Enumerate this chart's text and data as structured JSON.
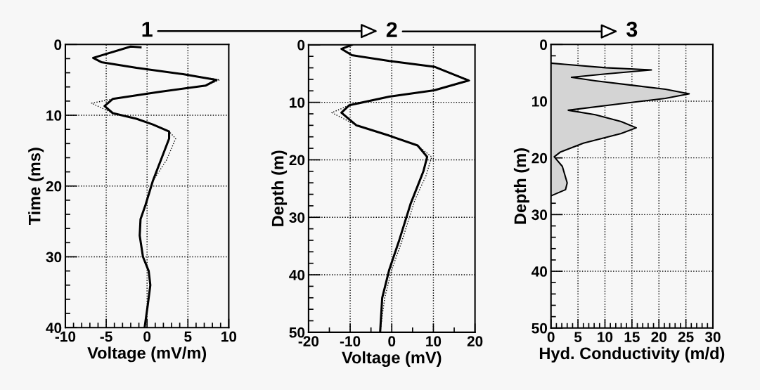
{
  "chart_data": [
    {
      "type": "line",
      "title": "1",
      "xlabel": "Voltage (mV/m)",
      "ylabel": "Time (ms)",
      "xlim": [
        -10,
        10
      ],
      "ylim": [
        40,
        0
      ],
      "grid": true,
      "xticks": [
        -10,
        {
          "value": -9,
          "label": null
        },
        {
          "value": -8,
          "label": null
        },
        {
          "value": -7,
          "label": null
        },
        {
          "value": -6,
          "label": null
        },
        -5,
        {
          "value": -4,
          "label": null
        },
        {
          "value": -3,
          "label": null
        },
        {
          "value": -2,
          "label": null
        },
        {
          "value": -1,
          "label": null
        },
        0,
        {
          "value": 1,
          "label": null
        },
        {
          "value": 2,
          "label": null
        },
        {
          "value": 3,
          "label": null
        },
        {
          "value": 4,
          "label": null
        },
        5,
        {
          "value": 6,
          "label": null
        },
        {
          "value": 7,
          "label": null
        },
        {
          "value": 8,
          "label": null
        },
        {
          "value": 9,
          "label": null
        },
        10
      ],
      "yticks": [
        0,
        {
          "value": 2,
          "label": null
        },
        {
          "value": 4,
          "label": null
        },
        {
          "value": 6,
          "label": null
        },
        {
          "value": 8,
          "label": null
        },
        10,
        {
          "value": 12,
          "label": null
        },
        {
          "value": 14,
          "label": null
        },
        {
          "value": 16,
          "label": null
        },
        {
          "value": 18,
          "label": null
        },
        20,
        {
          "value": 22,
          "label": null
        },
        {
          "value": 24,
          "label": null
        },
        {
          "value": 26,
          "label": null
        },
        {
          "value": 28,
          "label": null
        },
        30,
        {
          "value": 32,
          "label": null
        },
        {
          "value": 34,
          "label": null
        },
        {
          "value": 36,
          "label": null
        },
        {
          "value": 38,
          "label": null
        },
        40
      ],
      "series": [
        {
          "color": "#000000",
          "line_style": "dotted",
          "x": [
            -0.8,
            -2,
            -6.6,
            -5.6,
            -1.3,
            4.4,
            8.9,
            7.2,
            1.5,
            -4.2,
            -6.8,
            -4.2,
            -1.3,
            0.7,
            2.7,
            3.5,
            2.4,
            0.7,
            -0.2,
            -0.8,
            -0.9,
            -0.5,
            0.2,
            0.4,
            0.1,
            -0.3
          ],
          "values": [
            0.4,
            0.3,
            1.9,
            2.5,
            3.3,
            4.2,
            5.0,
            5.8,
            6.7,
            7.7,
            8.3,
            9.7,
            10.5,
            11.3,
            12.3,
            13.3,
            16.3,
            19.3,
            22.7,
            24.7,
            27,
            30,
            32,
            34,
            36.7,
            40
          ]
        },
        {
          "color": "#000000",
          "line_style": "solid",
          "x": [
            -0.8,
            -2,
            -6.6,
            -5.6,
            -1.3,
            4.4,
            8.5,
            7.2,
            1.5,
            -4.2,
            -5.2,
            -4.2,
            -1.3,
            0.7,
            2.7,
            2.7,
            1.8,
            0.7,
            -0.2,
            -0.8,
            -0.9,
            -0.5,
            0.2,
            0.4,
            0.1,
            -0.3
          ],
          "values": [
            0.4,
            0.3,
            1.9,
            2.5,
            3.3,
            4.2,
            5.0,
            5.8,
            6.7,
            7.7,
            8.7,
            9.7,
            10.5,
            11.3,
            12.3,
            13.3,
            16,
            19.3,
            22.7,
            24.7,
            27,
            30,
            32,
            34,
            36.7,
            40
          ]
        }
      ]
    },
    {
      "type": "line",
      "title": "2",
      "xlabel": "Voltage (mV)",
      "ylabel": "Depth (m)",
      "xlim": [
        -20,
        20
      ],
      "ylim": [
        50,
        0
      ],
      "grid": true,
      "xticks": [
        -20,
        {
          "value": -15,
          "label": null
        },
        -10,
        {
          "value": -5,
          "label": null
        },
        0,
        {
          "value": 5,
          "label": null
        },
        10,
        {
          "value": 15,
          "label": null
        },
        20
      ],
      "yticks": [
        0,
        {
          "value": 2,
          "label": null
        },
        {
          "value": 4,
          "label": null
        },
        {
          "value": 6,
          "label": null
        },
        {
          "value": 8,
          "label": null
        },
        10,
        {
          "value": 12,
          "label": null
        },
        {
          "value": 14,
          "label": null
        },
        {
          "value": 16,
          "label": null
        },
        {
          "value": 18,
          "label": null
        },
        20,
        {
          "value": 22,
          "label": null
        },
        {
          "value": 24,
          "label": null
        },
        {
          "value": 26,
          "label": null
        },
        {
          "value": 28,
          "label": null
        },
        30,
        {
          "value": 32,
          "label": null
        },
        {
          "value": 34,
          "label": null
        },
        {
          "value": 36,
          "label": null
        },
        {
          "value": 38,
          "label": null
        },
        40,
        {
          "value": 42,
          "label": null
        },
        {
          "value": 44,
          "label": null
        },
        {
          "value": 46,
          "label": null
        },
        {
          "value": 48,
          "label": null
        },
        50
      ],
      "series": [
        {
          "color": "#000000",
          "line_style": "dotted",
          "x": [
            -9.6,
            -12.1,
            -9.6,
            -0.6,
            10.2,
            18.8,
            10.2,
            -0.6,
            -10.2,
            -14.4,
            -8.5,
            -0.6,
            6.2,
            9.6,
            8.2,
            5.6,
            2.4,
            0,
            -1.7,
            -2.8
          ],
          "values": [
            0,
            0.7,
            1.8,
            2.8,
            3.8,
            6.2,
            7.9,
            9.0,
            10.5,
            11.8,
            14,
            15.8,
            17.5,
            19.5,
            22.8,
            26.9,
            34.2,
            39.1,
            44,
            50
          ]
        },
        {
          "color": "#000000",
          "line_style": "solid",
          "x": [
            -9.6,
            -12.1,
            -9.6,
            -0.6,
            10.2,
            18.5,
            10.2,
            -0.6,
            -10.2,
            -12.1,
            -8.5,
            -0.6,
            6.2,
            8.5,
            7.6,
            4.5,
            1.7,
            -0.6,
            -2.3,
            -2.8
          ],
          "values": [
            0,
            0.7,
            1.8,
            2.8,
            3.8,
            6.2,
            7.9,
            9.0,
            10.5,
            11.8,
            14,
            15.8,
            17.5,
            19.5,
            22,
            27.7,
            34.2,
            39.1,
            44,
            50
          ]
        }
      ]
    },
    {
      "type": "area",
      "title": "3",
      "xlabel": "Hyd. Conductivity (m/d)",
      "ylabel": "Depth (m)",
      "xlim": [
        0,
        30
      ],
      "ylim": [
        50,
        0
      ],
      "grid": true,
      "xticks": [
        0,
        {
          "value": 1,
          "label": null
        },
        {
          "value": 2,
          "label": null
        },
        {
          "value": 3,
          "label": null
        },
        {
          "value": 4,
          "label": null
        },
        5,
        {
          "value": 6,
          "label": null
        },
        {
          "value": 7,
          "label": null
        },
        {
          "value": 8,
          "label": null
        },
        {
          "value": 9,
          "label": null
        },
        10,
        {
          "value": 11,
          "label": null
        },
        {
          "value": 12,
          "label": null
        },
        {
          "value": 13,
          "label": null
        },
        {
          "value": 14,
          "label": null
        },
        15,
        {
          "value": 16,
          "label": null
        },
        {
          "value": 17,
          "label": null
        },
        {
          "value": 18,
          "label": null
        },
        {
          "value": 19,
          "label": null
        },
        20,
        {
          "value": 21,
          "label": null
        },
        {
          "value": 22,
          "label": null
        },
        {
          "value": 23,
          "label": null
        },
        {
          "value": 24,
          "label": null
        },
        25,
        {
          "value": 26,
          "label": null
        },
        {
          "value": 27,
          "label": null
        },
        {
          "value": 28,
          "label": null
        },
        {
          "value": 29,
          "label": null
        },
        30
      ],
      "yticks": [
        0,
        {
          "value": 2,
          "label": null
        },
        {
          "value": 4,
          "label": null
        },
        {
          "value": 6,
          "label": null
        },
        {
          "value": 8,
          "label": null
        },
        10,
        {
          "value": 12,
          "label": null
        },
        {
          "value": 14,
          "label": null
        },
        {
          "value": 16,
          "label": null
        },
        {
          "value": 18,
          "label": null
        },
        20,
        {
          "value": 22,
          "label": null
        },
        {
          "value": 24,
          "label": null
        },
        {
          "value": 26,
          "label": null
        },
        {
          "value": 28,
          "label": null
        },
        30,
        {
          "value": 32,
          "label": null
        },
        {
          "value": 34,
          "label": null
        },
        {
          "value": 36,
          "label": null
        },
        {
          "value": 38,
          "label": null
        },
        40,
        {
          "value": 42,
          "label": null
        },
        {
          "value": 44,
          "label": null
        },
        {
          "value": 46,
          "label": null
        },
        {
          "value": 48,
          "label": null
        },
        50
      ],
      "series": [
        {
          "color": "#d4d4d4",
          "x": [
            0,
            2.5,
            10.1,
            18.6,
            10.1,
            3.8,
            8.2,
            15.1,
            21.2,
            25.6,
            21.2,
            12.5,
            3.2,
            8.2,
            13.0,
            15.8,
            13.0,
            6.0,
            1.7,
            0.6,
            2.1,
            3.0,
            2.7,
            0
          ],
          "values": [
            3.3,
            3.5,
            4.1,
            4.5,
            5.2,
            5.8,
            6.4,
            7.2,
            7.9,
            8.7,
            9.5,
            10.5,
            11.6,
            12.4,
            13.6,
            14.7,
            15.7,
            17.4,
            19.0,
            19.8,
            21.5,
            24.4,
            25.6,
            26.7
          ]
        }
      ]
    }
  ]
}
